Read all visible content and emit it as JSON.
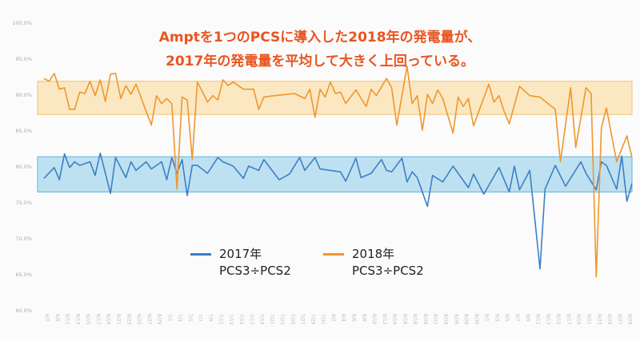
{
  "title": {
    "line1": "Amptを1つのPCSに導入した2018年の発電量が、",
    "line2": "2017年の発電量を平均して大きく上回っている。"
  },
  "colors": {
    "title": "#ea5520",
    "s2017": "#3d7fc6",
    "s2018": "#f0962e",
    "band2017": "#a9d8ee",
    "band2018": "#fbe2b0"
  },
  "chart_data": {
    "type": "line",
    "title": "Amptを1つのPCSに導入した2018年の発電量が、2017年の発電量を平均して大きく上回っている。",
    "xlabel": "",
    "ylabel": "",
    "ylim": [
      60,
      100
    ],
    "yticks": [
      "60.0%",
      "65.0%",
      "70.0%",
      "75.0%",
      "80.0%",
      "85.0%",
      "90.0%",
      "95.0%",
      "100.0%"
    ],
    "xlim": [
      0,
      115
    ],
    "xtick_labels": [
      "6/7",
      "6/9",
      "6/11",
      "6/13",
      "6/15",
      "6/17",
      "6/19",
      "6/21",
      "6/23",
      "6/25",
      "6/27",
      "6/29",
      "7/1",
      "7/3",
      "7/5",
      "7/7",
      "7/9",
      "7/11",
      "7/13",
      "7/15",
      "7/17",
      "7/19",
      "7/21",
      "7/23",
      "7/25",
      "7/27",
      "7/29",
      "7/31",
      "8/2",
      "8/4",
      "8/6",
      "8/8",
      "8/10",
      "8/12",
      "8/14",
      "8/16",
      "8/18",
      "8/20",
      "8/22",
      "8/24",
      "8/26",
      "8/28",
      "8/30",
      "9/1",
      "9/3",
      "9/5",
      "9/7",
      "9/9",
      "9/11",
      "9/13",
      "9/15",
      "9/17",
      "9/19",
      "9/21",
      "9/23",
      "9/25",
      "9/27",
      "9/29"
    ],
    "grid": false,
    "legend_position": "bottom-center",
    "series": [
      {
        "name": "2017年",
        "name2": "PCS3÷PCS2",
        "points": [
          [
            0,
            78.3
          ],
          [
            2,
            79.8
          ],
          [
            3,
            78.1
          ],
          [
            4,
            81.7
          ],
          [
            5,
            79.8
          ],
          [
            6,
            80.6
          ],
          [
            7,
            80.1
          ],
          [
            9,
            80.6
          ],
          [
            10,
            78.7
          ],
          [
            11,
            81.8
          ],
          [
            13,
            76.2
          ],
          [
            14,
            81.2
          ],
          [
            16,
            78.4
          ],
          [
            17,
            80.6
          ],
          [
            18,
            79.4
          ],
          [
            20,
            80.6
          ],
          [
            21,
            79.6
          ],
          [
            23,
            80.6
          ],
          [
            24,
            78.1
          ],
          [
            25,
            81.2
          ],
          [
            26,
            79.0
          ],
          [
            27,
            80.9
          ],
          [
            28,
            75.9
          ],
          [
            29,
            80.1
          ],
          [
            30,
            80.1
          ],
          [
            32,
            79.0
          ],
          [
            34,
            81.2
          ],
          [
            35,
            80.6
          ],
          [
            37,
            80.0
          ],
          [
            39,
            78.3
          ],
          [
            40,
            80.0
          ],
          [
            42,
            79.4
          ],
          [
            43,
            80.9
          ],
          [
            46,
            78.1
          ],
          [
            48,
            78.9
          ],
          [
            50,
            81.2
          ],
          [
            51,
            79.4
          ],
          [
            53,
            81.2
          ],
          [
            54,
            79.6
          ],
          [
            58,
            79.2
          ],
          [
            59,
            77.9
          ],
          [
            61,
            81.1
          ],
          [
            62,
            78.4
          ],
          [
            64,
            79.0
          ],
          [
            66,
            80.9
          ],
          [
            67,
            79.4
          ],
          [
            68,
            79.2
          ],
          [
            70,
            81.1
          ],
          [
            71,
            77.8
          ],
          [
            72,
            79.2
          ],
          [
            73,
            78.4
          ],
          [
            75,
            74.4
          ],
          [
            76,
            78.7
          ],
          [
            78,
            77.8
          ],
          [
            80,
            80.0
          ],
          [
            83,
            77.0
          ],
          [
            84,
            78.9
          ],
          [
            86,
            76.1
          ],
          [
            89,
            79.8
          ],
          [
            91,
            76.4
          ],
          [
            92,
            80.0
          ],
          [
            93,
            76.7
          ],
          [
            95,
            79.4
          ],
          [
            97,
            65.7
          ],
          [
            98,
            76.8
          ],
          [
            100,
            80.1
          ],
          [
            102,
            77.2
          ],
          [
            105,
            80.6
          ],
          [
            106,
            79.0
          ],
          [
            108,
            76.7
          ],
          [
            109,
            80.6
          ],
          [
            110,
            80.1
          ],
          [
            112,
            76.8
          ],
          [
            113,
            81.4
          ],
          [
            114,
            75.1
          ],
          [
            115,
            77.6
          ]
        ],
        "band": [
          76.4,
          81.3
        ]
      },
      {
        "name": "2018年",
        "name2": "PCS3÷PCS2",
        "points": [
          [
            0,
            92.2
          ],
          [
            1,
            91.8
          ],
          [
            2,
            92.9
          ],
          [
            3,
            90.7
          ],
          [
            4,
            90.9
          ],
          [
            5,
            87.9
          ],
          [
            6,
            87.9
          ],
          [
            7,
            90.3
          ],
          [
            8,
            90.1
          ],
          [
            9,
            91.8
          ],
          [
            10,
            89.8
          ],
          [
            11,
            92.0
          ],
          [
            12,
            89.0
          ],
          [
            13,
            92.8
          ],
          [
            14,
            92.9
          ],
          [
            15,
            89.4
          ],
          [
            16,
            91.2
          ],
          [
            17,
            90.0
          ],
          [
            18,
            91.4
          ],
          [
            21,
            85.7
          ],
          [
            22,
            89.8
          ],
          [
            23,
            88.7
          ],
          [
            24,
            89.4
          ],
          [
            25,
            88.7
          ],
          [
            26,
            76.8
          ],
          [
            27,
            89.6
          ],
          [
            28,
            89.2
          ],
          [
            29,
            80.9
          ],
          [
            30,
            91.7
          ],
          [
            32,
            88.9
          ],
          [
            33,
            89.8
          ],
          [
            34,
            89.2
          ],
          [
            35,
            92.0
          ],
          [
            36,
            91.2
          ],
          [
            37,
            91.7
          ],
          [
            39,
            90.7
          ],
          [
            41,
            90.7
          ],
          [
            42,
            87.9
          ],
          [
            43,
            89.6
          ],
          [
            45,
            89.8
          ],
          [
            49,
            90.1
          ],
          [
            51,
            89.4
          ],
          [
            52,
            90.7
          ],
          [
            53,
            86.8
          ],
          [
            54,
            90.7
          ],
          [
            55,
            89.6
          ],
          [
            56,
            91.7
          ],
          [
            57,
            90.1
          ],
          [
            58,
            90.3
          ],
          [
            59,
            88.7
          ],
          [
            61,
            90.6
          ],
          [
            63,
            88.3
          ],
          [
            64,
            90.7
          ],
          [
            65,
            89.8
          ],
          [
            67,
            92.2
          ],
          [
            68,
            90.9
          ],
          [
            69,
            85.7
          ],
          [
            70,
            89.8
          ],
          [
            71,
            93.9
          ],
          [
            72,
            88.7
          ],
          [
            73,
            89.8
          ],
          [
            74,
            85.0
          ],
          [
            75,
            90.0
          ],
          [
            76,
            88.7
          ],
          [
            77,
            90.6
          ],
          [
            78,
            89.4
          ],
          [
            80,
            84.6
          ],
          [
            81,
            89.6
          ],
          [
            82,
            88.3
          ],
          [
            83,
            89.4
          ],
          [
            84,
            85.6
          ],
          [
            87,
            91.4
          ],
          [
            88,
            88.9
          ],
          [
            89,
            89.8
          ],
          [
            90,
            87.6
          ],
          [
            91,
            85.9
          ],
          [
            93,
            91.1
          ],
          [
            95,
            89.8
          ],
          [
            97,
            89.6
          ],
          [
            100,
            87.9
          ],
          [
            101,
            80.6
          ],
          [
            103,
            90.9
          ],
          [
            104,
            82.6
          ],
          [
            106,
            90.9
          ],
          [
            107,
            90.1
          ],
          [
            108,
            64.6
          ],
          [
            109,
            85.3
          ],
          [
            110,
            88.1
          ],
          [
            112,
            80.6
          ],
          [
            114,
            84.2
          ],
          [
            115,
            81.2
          ]
        ],
        "band": [
          87.2,
          91.8
        ]
      }
    ]
  }
}
